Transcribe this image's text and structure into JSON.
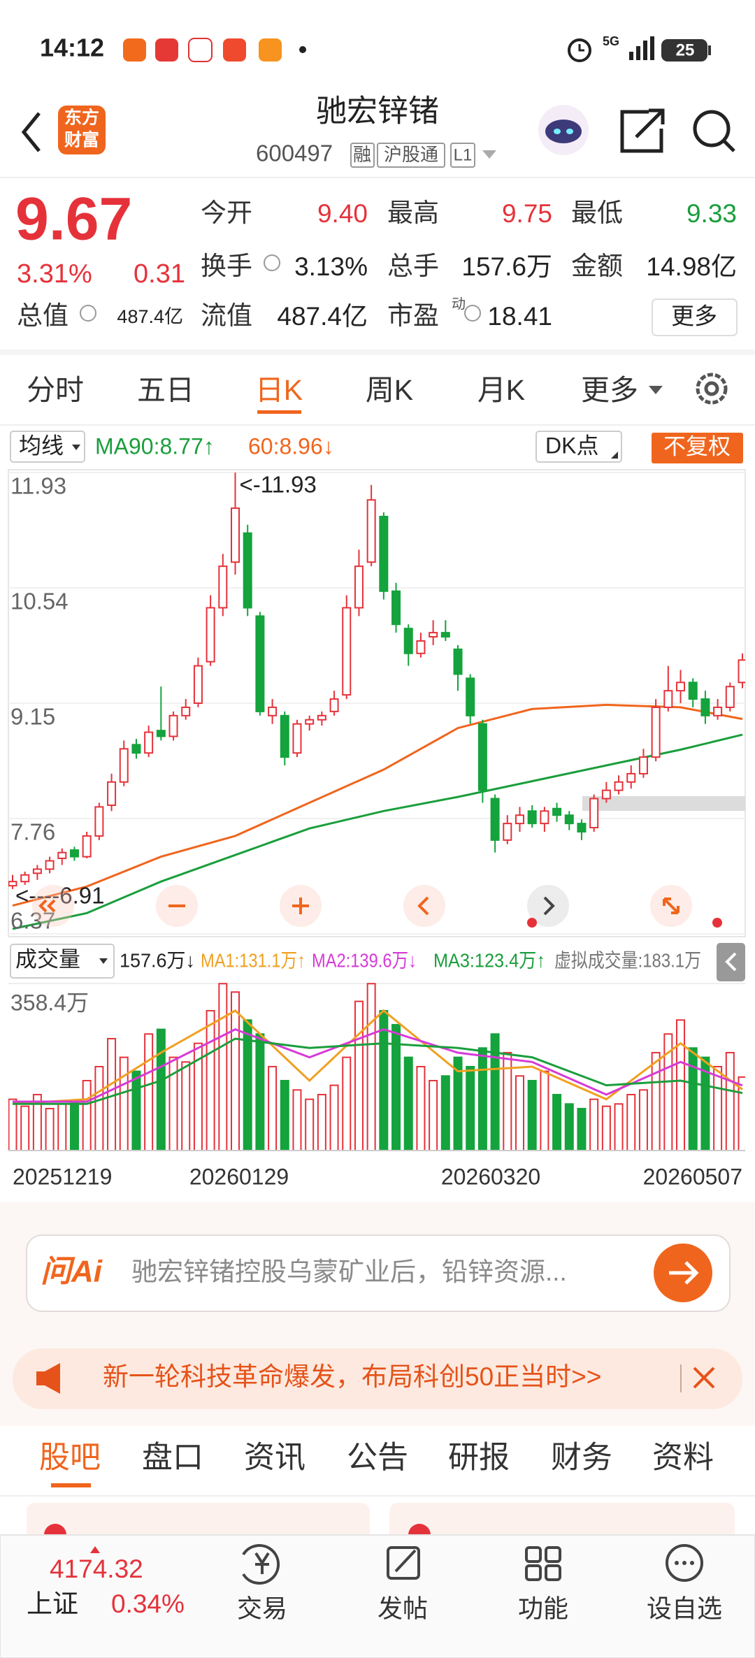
{
  "status_bar": {
    "time": "14:12",
    "network": "5G",
    "battery": "25"
  },
  "header": {
    "logo": [
      "东方",
      "财富"
    ],
    "title": "驰宏锌锗",
    "code": "600497",
    "tags": [
      "融",
      "沪股通",
      "L1"
    ]
  },
  "quote": {
    "price": "9.67",
    "change_pct": "3.31%",
    "change": "0.31",
    "color": "#e5323a",
    "fields": [
      {
        "label": "今开",
        "value": "9.40",
        "color": "#e5323a"
      },
      {
        "label": "最高",
        "value": "9.75",
        "color": "#e5323a"
      },
      {
        "label": "最低",
        "value": "9.33",
        "color": "#1a9e3c"
      },
      {
        "label": "换手",
        "value": "3.13%",
        "color": "#222222"
      },
      {
        "label": "总手",
        "value": "157.6万",
        "color": "#222222"
      },
      {
        "label": "金额",
        "value": "14.98亿",
        "color": "#222222"
      },
      {
        "label": "总值",
        "value": "487.4亿",
        "color": "#222222"
      },
      {
        "label": "流值",
        "value": "487.4亿",
        "color": "#222222"
      },
      {
        "label": "市盈",
        "value": "18.41",
        "color": "#222222"
      }
    ],
    "pe_tag": "动",
    "more": "更多"
  },
  "period_tabs": {
    "items": [
      "分时",
      "五日",
      "日K",
      "周K",
      "月K",
      "更多"
    ],
    "active": 2
  },
  "chart_data": [
    {
      "type": "candlestick",
      "indicator_selector": "均线",
      "indicator_button": "DK点",
      "adjust_button": "不复权",
      "ylim": [
        6.37,
        11.93
      ],
      "yticks": [
        11.93,
        10.54,
        9.15,
        7.76,
        6.37
      ],
      "grid": true,
      "up_color": "#e5323a",
      "down_color": "#14a33c",
      "candles": [
        [
          6.95,
          7.08,
          6.91,
          7.0
        ],
        [
          7.0,
          7.12,
          6.96,
          7.08
        ],
        [
          7.1,
          7.2,
          7.02,
          7.15
        ],
        [
          7.15,
          7.3,
          7.1,
          7.25
        ],
        [
          7.28,
          7.4,
          7.2,
          7.35
        ],
        [
          7.38,
          7.42,
          7.25,
          7.3
        ],
        [
          7.3,
          7.6,
          7.28,
          7.55
        ],
        [
          7.55,
          7.95,
          7.5,
          7.9
        ],
        [
          7.92,
          8.3,
          7.85,
          8.2
        ],
        [
          8.2,
          8.7,
          8.15,
          8.6
        ],
        [
          8.65,
          8.72,
          8.48,
          8.55
        ],
        [
          8.55,
          8.88,
          8.5,
          8.8
        ],
        [
          8.82,
          9.35,
          8.7,
          8.75
        ],
        [
          8.75,
          9.05,
          8.7,
          9.0
        ],
        [
          9.0,
          9.2,
          8.95,
          9.1
        ],
        [
          9.15,
          9.7,
          9.1,
          9.6
        ],
        [
          9.65,
          10.45,
          9.6,
          10.3
        ],
        [
          10.3,
          10.95,
          10.2,
          10.8
        ],
        [
          10.85,
          11.93,
          10.7,
          11.5
        ],
        [
          11.2,
          11.3,
          10.2,
          10.3
        ],
        [
          10.2,
          10.25,
          9.0,
          9.05
        ],
        [
          9.0,
          9.2,
          8.9,
          9.1
        ],
        [
          9.0,
          9.05,
          8.4,
          8.5
        ],
        [
          8.55,
          8.95,
          8.5,
          8.9
        ],
        [
          8.9,
          9.0,
          8.82,
          8.95
        ],
        [
          8.95,
          9.05,
          8.88,
          9.0
        ],
        [
          9.05,
          9.3,
          9.0,
          9.2
        ],
        [
          9.25,
          10.45,
          9.2,
          10.3
        ],
        [
          10.3,
          11.0,
          10.2,
          10.8
        ],
        [
          10.85,
          11.78,
          10.8,
          11.6
        ],
        [
          11.4,
          11.45,
          10.4,
          10.5
        ],
        [
          10.5,
          10.6,
          10.0,
          10.1
        ],
        [
          10.05,
          10.1,
          9.6,
          9.75
        ],
        [
          9.75,
          10.0,
          9.7,
          9.9
        ],
        [
          9.95,
          10.15,
          9.85,
          10.0
        ],
        [
          10.0,
          10.15,
          9.9,
          9.95
        ],
        [
          9.8,
          9.85,
          9.3,
          9.5
        ],
        [
          9.45,
          9.5,
          8.9,
          9.0
        ],
        [
          8.9,
          8.95,
          7.95,
          8.1
        ],
        [
          8.0,
          8.05,
          7.35,
          7.5
        ],
        [
          7.5,
          7.8,
          7.45,
          7.7
        ],
        [
          7.7,
          7.9,
          7.6,
          7.8
        ],
        [
          7.85,
          7.92,
          7.65,
          7.7
        ],
        [
          7.7,
          7.9,
          7.6,
          7.85
        ],
        [
          7.88,
          7.95,
          7.72,
          7.8
        ],
        [
          7.8,
          7.85,
          7.62,
          7.7
        ],
        [
          7.7,
          7.75,
          7.5,
          7.6
        ],
        [
          7.65,
          8.05,
          7.6,
          8.0
        ],
        [
          8.0,
          8.2,
          7.95,
          8.1
        ],
        [
          8.1,
          8.28,
          8.05,
          8.2
        ],
        [
          8.2,
          8.4,
          8.12,
          8.3
        ],
        [
          8.3,
          8.6,
          8.25,
          8.5
        ],
        [
          8.5,
          9.2,
          8.45,
          9.1
        ],
        [
          9.1,
          9.6,
          9.05,
          9.3
        ],
        [
          9.3,
          9.55,
          9.15,
          9.4
        ],
        [
          9.4,
          9.45,
          9.1,
          9.2
        ],
        [
          9.2,
          9.3,
          8.9,
          9.0
        ],
        [
          9.0,
          9.2,
          8.95,
          9.1
        ],
        [
          9.1,
          9.4,
          9.05,
          9.35
        ],
        [
          9.4,
          9.75,
          9.33,
          9.67
        ]
      ],
      "series": [
        {
          "name": "MA90:8.77↑",
          "color": "#1a9e3c",
          "x": [
            0,
            6,
            12,
            18,
            24,
            30,
            36,
            42,
            48,
            54,
            59
          ],
          "values": [
            6.43,
            6.62,
            7.0,
            7.32,
            7.64,
            7.85,
            8.02,
            8.21,
            8.4,
            8.59,
            8.77
          ]
        },
        {
          "name": "60:8.96↓",
          "color": "#f0651d",
          "x": [
            0,
            6,
            12,
            18,
            24,
            30,
            36,
            42,
            48,
            54,
            59
          ],
          "values": [
            6.71,
            6.94,
            7.3,
            7.55,
            7.95,
            8.35,
            8.85,
            9.08,
            9.13,
            9.1,
            8.96
          ]
        }
      ],
      "max_label": "<-11.93",
      "min_label": "<----6.91"
    },
    {
      "type": "volume_bar",
      "selector": "成交量",
      "current": "157.6万↓",
      "virtual": "虚拟成交量:183.1万",
      "ylim": [
        0,
        358.4
      ],
      "yticks": [
        {
          "value": 358.4,
          "label": "358.4万"
        }
      ],
      "values": [
        110,
        95,
        120,
        90,
        100,
        105,
        150,
        180,
        240,
        200,
        170,
        250,
        260,
        200,
        190,
        230,
        300,
        358,
        340,
        280,
        250,
        180,
        150,
        130,
        110,
        120,
        140,
        200,
        320,
        358,
        300,
        270,
        200,
        180,
        150,
        160,
        200,
        180,
        220,
        250,
        210,
        160,
        150,
        170,
        120,
        100,
        90,
        110,
        95,
        100,
        120,
        130,
        210,
        250,
        280,
        220,
        200,
        180,
        210,
        157.6
      ],
      "series": [
        {
          "name": "MA1:131.1万↑",
          "color": "#f0a020",
          "x": [
            0,
            6,
            12,
            18,
            24,
            30,
            36,
            42,
            48,
            54,
            59
          ],
          "values": [
            100,
            110,
            210,
            300,
            150,
            300,
            170,
            180,
            110,
            230,
            131.1
          ]
        },
        {
          "name": "MA2:139.6万↓",
          "color": "#d63bd6",
          "x": [
            0,
            6,
            12,
            18,
            24,
            30,
            36,
            42,
            48,
            54,
            59
          ],
          "values": [
            105,
            105,
            180,
            260,
            200,
            260,
            210,
            190,
            120,
            190,
            139.6
          ]
        },
        {
          "name": "MA3:123.4万↑",
          "color": "#1a9e3c",
          "x": [
            0,
            6,
            12,
            18,
            24,
            30,
            36,
            42,
            48,
            54,
            59
          ],
          "values": [
            100,
            100,
            150,
            240,
            220,
            230,
            220,
            200,
            140,
            150,
            123.4
          ]
        }
      ],
      "date_labels": [
        "20251219",
        "20260129",
        "20260320",
        "20260507"
      ]
    }
  ],
  "ai_box": {
    "brand": "问Ai",
    "prompt": "驰宏锌锗控股乌蒙矿业后，铅锌资源..."
  },
  "banner": {
    "text": "新一轮科技革命爆发，布局科创50正当时>>"
  },
  "info_tabs": {
    "items": [
      "股吧",
      "盘口",
      "资讯",
      "公告",
      "研报",
      "财务",
      "资料"
    ],
    "active": 0
  },
  "bottom_nav": {
    "index_value": "4174.32",
    "index_name": "上证",
    "index_change": "0.34%",
    "items": [
      "交易",
      "发帖",
      "功能",
      "设自选"
    ]
  }
}
